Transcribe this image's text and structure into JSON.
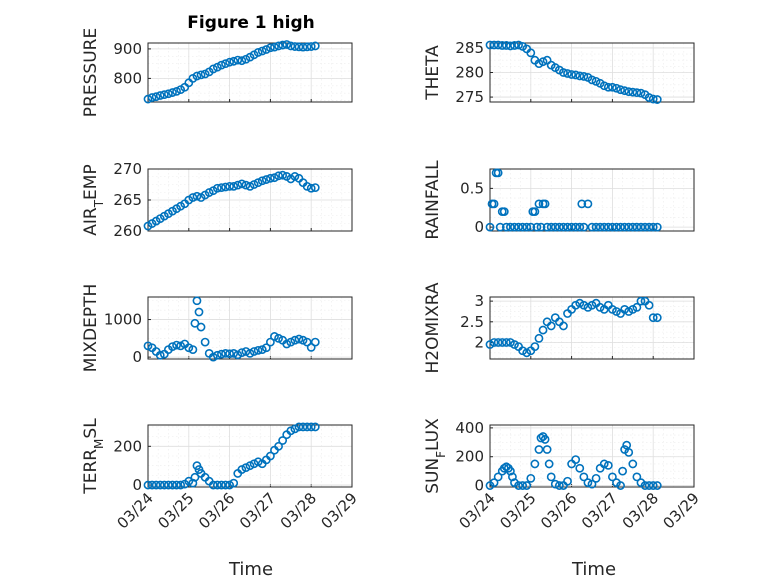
{
  "figure": {
    "title": "Figure 1 high",
    "xlabel": "Time",
    "marker_color": "#0072BD",
    "xticks": [
      "03/24",
      "03/25",
      "03/26",
      "03/27",
      "03/28",
      "03/29"
    ]
  },
  "chart_data": [
    {
      "type": "scatter",
      "ylabel": "PRESSURE",
      "ylim": [
        720,
        920
      ],
      "yticks": [
        800,
        900
      ],
      "xlim": [
        0,
        5
      ],
      "grid": true,
      "x": [
        0,
        0.1,
        0.2,
        0.3,
        0.4,
        0.5,
        0.6,
        0.7,
        0.8,
        0.9,
        1.0,
        1.1,
        1.2,
        1.3,
        1.4,
        1.5,
        1.6,
        1.7,
        1.8,
        1.9,
        2.0,
        2.1,
        2.2,
        2.3,
        2.4,
        2.5,
        2.6,
        2.7,
        2.8,
        2.9,
        3.0,
        3.1,
        3.2,
        3.3,
        3.4,
        3.5,
        3.6,
        3.7,
        3.8,
        3.9,
        4.0,
        4.1
      ],
      "y": [
        730,
        735,
        738,
        742,
        745,
        748,
        752,
        756,
        762,
        770,
        785,
        800,
        808,
        812,
        815,
        822,
        832,
        838,
        845,
        850,
        855,
        858,
        862,
        860,
        865,
        872,
        880,
        888,
        893,
        898,
        904,
        906,
        910,
        913,
        915,
        910,
        908,
        907,
        906,
        907,
        908,
        910
      ]
    },
    {
      "type": "scatter",
      "ylabel": "THETA",
      "ylim": [
        274,
        286
      ],
      "yticks": [
        275,
        280,
        285
      ],
      "xlim": [
        0,
        5
      ],
      "grid": true,
      "x": [
        0,
        0.1,
        0.2,
        0.3,
        0.4,
        0.5,
        0.6,
        0.7,
        0.8,
        0.9,
        1.0,
        1.1,
        1.2,
        1.3,
        1.4,
        1.5,
        1.6,
        1.7,
        1.8,
        1.9,
        2.0,
        2.1,
        2.2,
        2.3,
        2.4,
        2.5,
        2.6,
        2.7,
        2.8,
        2.9,
        3.0,
        3.1,
        3.2,
        3.3,
        3.4,
        3.5,
        3.6,
        3.7,
        3.8,
        3.9,
        4.0,
        4.1
      ],
      "y": [
        285.6,
        285.6,
        285.6,
        285.5,
        285.5,
        285.4,
        285.5,
        285.6,
        285.3,
        284.8,
        284,
        282.5,
        281.8,
        282.2,
        282.5,
        281.5,
        281,
        280.5,
        280,
        279.8,
        279.6,
        279.5,
        279.3,
        279.2,
        279,
        278.5,
        278.2,
        277.8,
        277.3,
        277,
        277,
        276.8,
        276.5,
        276.3,
        276.1,
        276,
        275.9,
        275.8,
        275.5,
        274.9,
        274.6,
        274.5
      ]
    },
    {
      "type": "scatter",
      "ylabel": "AIR_TEMP",
      "ylim": [
        260,
        270
      ],
      "yticks": [
        260,
        265,
        270
      ],
      "xlim": [
        0,
        5
      ],
      "grid": true,
      "x": [
        0,
        0.1,
        0.2,
        0.3,
        0.4,
        0.5,
        0.6,
        0.7,
        0.8,
        0.9,
        1.0,
        1.1,
        1.2,
        1.3,
        1.4,
        1.5,
        1.6,
        1.7,
        1.8,
        1.9,
        2.0,
        2.1,
        2.2,
        2.3,
        2.4,
        2.5,
        2.6,
        2.7,
        2.8,
        2.9,
        3.0,
        3.1,
        3.2,
        3.3,
        3.4,
        3.5,
        3.6,
        3.7,
        3.8,
        3.9,
        4.0,
        4.1
      ],
      "y": [
        260.8,
        261.2,
        261.6,
        262,
        262.4,
        262.8,
        263.2,
        263.6,
        264,
        264.4,
        265,
        265.4,
        265.6,
        265.4,
        265.8,
        266.2,
        266.5,
        266.9,
        267,
        267.1,
        267.2,
        267.2,
        267.4,
        267.6,
        267.4,
        267.2,
        267.5,
        267.8,
        268.1,
        268.3,
        268.5,
        268.6,
        268.9,
        269,
        268.8,
        268.4,
        268.8,
        268.5,
        267.8,
        267.2,
        266.9,
        267
      ]
    },
    {
      "type": "scatter",
      "ylabel": "RAINFALL",
      "ylim": [
        -0.05,
        0.75
      ],
      "yticks": [
        0,
        0.5
      ],
      "xlim": [
        0,
        5
      ],
      "grid": true,
      "x": [
        0,
        0.05,
        0.1,
        0.15,
        0.2,
        0.25,
        0.3,
        0.35,
        0.4,
        0.5,
        0.6,
        0.7,
        0.8,
        0.9,
        1.0,
        1.05,
        1.1,
        1.15,
        1.2,
        1.25,
        1.3,
        1.35,
        1.4,
        1.5,
        1.6,
        1.7,
        1.8,
        1.9,
        2.0,
        2.1,
        2.2,
        2.25,
        2.3,
        2.4,
        2.5,
        2.6,
        2.7,
        2.8,
        2.9,
        3.0,
        3.1,
        3.2,
        3.3,
        3.4,
        3.5,
        3.6,
        3.7,
        3.8,
        3.9,
        4.0,
        4.1
      ],
      "y": [
        0,
        0.3,
        0.3,
        0.7,
        0.7,
        0,
        0.2,
        0.2,
        0,
        0,
        0,
        0,
        0,
        0,
        0,
        0.2,
        0.2,
        0,
        0.3,
        0,
        0.3,
        0.3,
        0,
        0,
        0,
        0,
        0,
        0,
        0,
        0,
        0,
        0.3,
        0,
        0.3,
        0,
        0,
        0,
        0,
        0,
        0,
        0,
        0,
        0,
        0,
        0,
        0,
        0,
        0,
        0,
        0,
        0
      ]
    },
    {
      "type": "scatter",
      "ylabel": "MIXDEPTH",
      "ylim": [
        -50,
        1600
      ],
      "yticks": [
        0,
        1000
      ],
      "xlim": [
        0,
        5
      ],
      "grid": true,
      "x": [
        0,
        0.1,
        0.2,
        0.3,
        0.4,
        0.5,
        0.6,
        0.7,
        0.8,
        0.9,
        1.0,
        1.1,
        1.15,
        1.2,
        1.25,
        1.3,
        1.4,
        1.5,
        1.6,
        1.7,
        1.8,
        1.9,
        2.0,
        2.1,
        2.2,
        2.3,
        2.4,
        2.5,
        2.6,
        2.7,
        2.8,
        2.9,
        3.0,
        3.1,
        3.2,
        3.3,
        3.4,
        3.5,
        3.6,
        3.7,
        3.8,
        3.9,
        4.0,
        4.1
      ],
      "y": [
        300,
        250,
        150,
        50,
        80,
        200,
        280,
        320,
        300,
        350,
        250,
        200,
        900,
        1500,
        1200,
        800,
        400,
        100,
        0,
        50,
        80,
        100,
        90,
        100,
        60,
        120,
        150,
        100,
        150,
        180,
        200,
        250,
        400,
        550,
        500,
        450,
        350,
        400,
        450,
        480,
        450,
        400,
        260,
        400
      ]
    },
    {
      "type": "scatter",
      "ylabel": "H2OMIXRA",
      "ylim": [
        1.6,
        3.1
      ],
      "yticks": [
        2,
        2.5,
        3
      ],
      "xlim": [
        0,
        5
      ],
      "grid": true,
      "x": [
        0,
        0.1,
        0.2,
        0.3,
        0.4,
        0.5,
        0.6,
        0.7,
        0.8,
        0.9,
        1.0,
        1.1,
        1.2,
        1.3,
        1.4,
        1.5,
        1.6,
        1.7,
        1.8,
        1.9,
        2.0,
        2.1,
        2.2,
        2.3,
        2.4,
        2.5,
        2.6,
        2.7,
        2.8,
        2.9,
        3.0,
        3.1,
        3.2,
        3.3,
        3.4,
        3.5,
        3.6,
        3.7,
        3.8,
        3.9,
        4.0,
        4.1
      ],
      "y": [
        1.95,
        2,
        2,
        2,
        2,
        2,
        1.95,
        1.9,
        1.8,
        1.75,
        1.8,
        1.9,
        2.1,
        2.3,
        2.5,
        2.4,
        2.6,
        2.5,
        2.4,
        2.7,
        2.8,
        2.9,
        2.95,
        2.9,
        2.85,
        2.9,
        2.95,
        2.85,
        2.8,
        2.9,
        2.8,
        2.75,
        2.7,
        2.8,
        2.75,
        2.8,
        2.85,
        3,
        3,
        2.9,
        2.6,
        2.6
      ]
    },
    {
      "type": "scatter",
      "ylabel": "TERR_MSL",
      "ylim": [
        -10,
        310
      ],
      "yticks": [
        0,
        200
      ],
      "xlim": [
        0,
        5
      ],
      "grid": true,
      "x": [
        0,
        0.1,
        0.2,
        0.3,
        0.4,
        0.5,
        0.6,
        0.7,
        0.8,
        0.9,
        1.0,
        1.1,
        1.15,
        1.2,
        1.25,
        1.3,
        1.4,
        1.5,
        1.6,
        1.7,
        1.8,
        1.9,
        2.0,
        2.1,
        2.2,
        2.3,
        2.4,
        2.5,
        2.6,
        2.7,
        2.8,
        2.9,
        3.0,
        3.1,
        3.2,
        3.3,
        3.4,
        3.5,
        3.6,
        3.7,
        3.8,
        3.9,
        4.0,
        4.1
      ],
      "y": [
        0,
        0,
        0,
        0,
        0,
        0,
        0,
        0,
        0,
        5,
        20,
        10,
        40,
        100,
        80,
        60,
        40,
        20,
        0,
        0,
        0,
        0,
        0,
        10,
        60,
        80,
        90,
        100,
        110,
        120,
        110,
        130,
        150,
        180,
        200,
        230,
        260,
        280,
        290,
        300,
        300,
        300,
        300,
        300
      ]
    },
    {
      "type": "scatter",
      "ylabel": "SUN_FLUX",
      "ylim": [
        -10,
        420
      ],
      "yticks": [
        0,
        200,
        400
      ],
      "xlim": [
        0,
        5
      ],
      "grid": true,
      "x": [
        0,
        0.1,
        0.2,
        0.3,
        0.35,
        0.4,
        0.45,
        0.5,
        0.55,
        0.6,
        0.7,
        0.8,
        0.9,
        1.0,
        1.1,
        1.2,
        1.25,
        1.3,
        1.35,
        1.4,
        1.45,
        1.5,
        1.6,
        1.7,
        1.8,
        1.9,
        2.0,
        2.1,
        2.2,
        2.3,
        2.4,
        2.5,
        2.6,
        2.7,
        2.8,
        2.9,
        3.0,
        3.1,
        3.2,
        3.25,
        3.3,
        3.35,
        3.4,
        3.5,
        3.6,
        3.7,
        3.8,
        3.9,
        4.0,
        4.1
      ],
      "y": [
        0,
        20,
        60,
        100,
        120,
        130,
        120,
        100,
        60,
        20,
        0,
        0,
        0,
        50,
        150,
        250,
        330,
        340,
        320,
        250,
        150,
        60,
        10,
        0,
        0,
        30,
        150,
        180,
        120,
        60,
        20,
        10,
        50,
        120,
        150,
        140,
        60,
        20,
        0,
        100,
        250,
        280,
        230,
        150,
        60,
        20,
        0,
        0,
        0,
        0
      ]
    }
  ]
}
